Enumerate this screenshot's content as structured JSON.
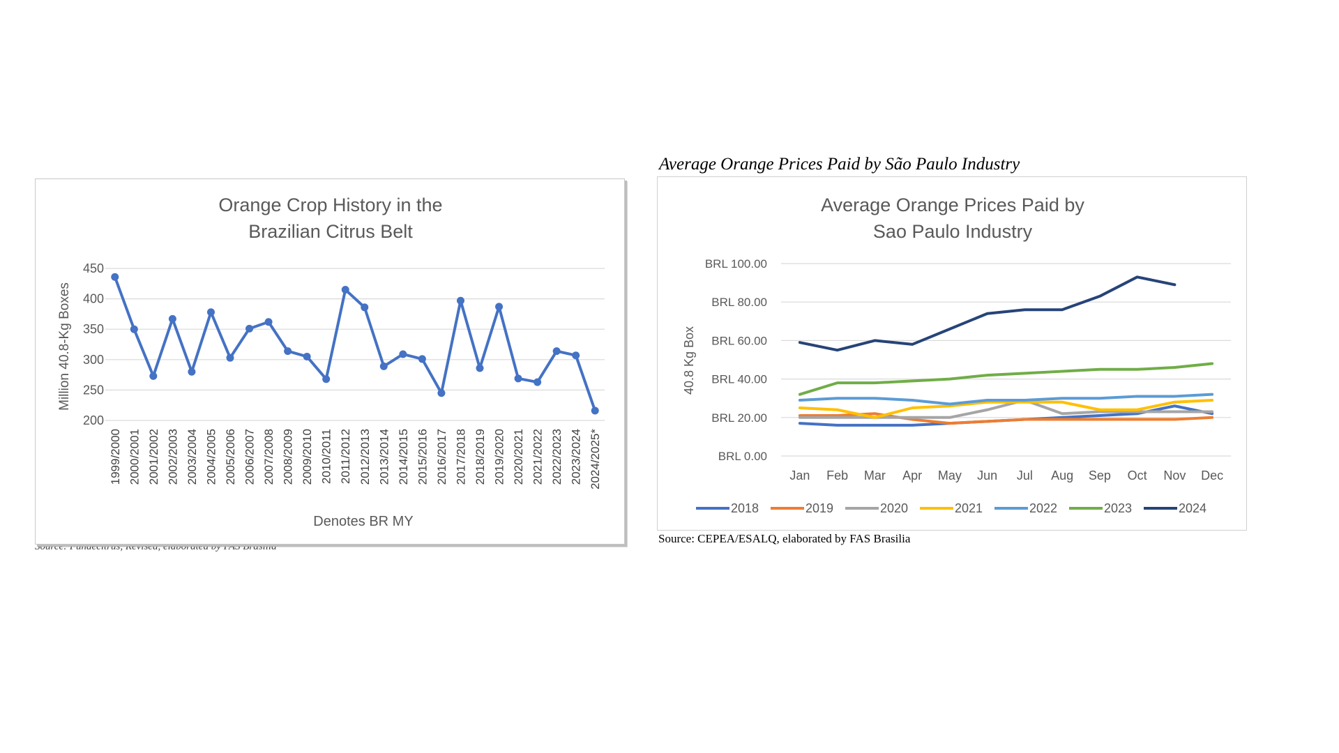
{
  "page": {
    "caption_title": "Average Orange Prices Paid by São Paulo Industry",
    "caption_source": "Source: CEPEA/ESALQ, elaborated by FAS Brasilia",
    "caption_cut_left": "Source: Fundecitrus, Revised, elaborated by FAS Brasilia"
  },
  "chart_data": [
    {
      "type": "line",
      "title": "Orange Crop History in the Brazilian Citrus Belt",
      "title_lines": [
        "Orange Crop History in the",
        "Brazilian Citrus Belt"
      ],
      "xlabel": "Denotes BR MY",
      "ylabel": "Million 40.8-Kg Boxes",
      "ylim": [
        200,
        450
      ],
      "yticks": [
        200,
        250,
        300,
        350,
        400,
        450
      ],
      "grid": true,
      "legend": "none",
      "categories": [
        "1999/2000",
        "2000/2001",
        "2001/2002",
        "2002/2003",
        "2003/2004",
        "2004/2005",
        "2005/2006",
        "2006/2007",
        "2007/2008",
        "2008/2009",
        "2009/2010",
        "2010/2011",
        "2011/2012",
        "2012/2013",
        "2013/2014",
        "2014/2015",
        "2015/2016",
        "2016/2017",
        "2017/2018",
        "2018/2019",
        "2019/2020",
        "2020/2021",
        "2021/2022",
        "2022/2023",
        "2023/2024",
        "2024/2025*"
      ],
      "values": [
        436,
        350,
        273,
        367,
        280,
        378,
        303,
        351,
        362,
        314,
        305,
        268,
        415,
        386,
        289,
        309,
        301,
        245,
        397,
        286,
        387,
        269,
        263,
        314,
        307,
        216
      ],
      "color": "#4472C4"
    },
    {
      "type": "line",
      "title": "Average Orange Prices Paid by Sao Paulo Industry",
      "title_lines": [
        "Average Orange Prices Paid by",
        "Sao Paulo Industry"
      ],
      "xlabel": "",
      "ylabel": "40.8 Kg Box",
      "ylim": [
        0,
        100
      ],
      "yticks": [
        0,
        20,
        40,
        60,
        80,
        100
      ],
      "ytick_labels": [
        "BRL 0.00",
        "BRL 20.00",
        "BRL 40.00",
        "BRL 60.00",
        "BRL 80.00",
        "BRL 100.00"
      ],
      "grid": true,
      "legend": "bottom",
      "categories": [
        "Jan",
        "Feb",
        "Mar",
        "Apr",
        "May",
        "Jun",
        "Jul",
        "Aug",
        "Sep",
        "Oct",
        "Nov",
        "Dec"
      ],
      "series": [
        {
          "name": "2018",
          "color": "#4472C4",
          "values": [
            17,
            16,
            16,
            16,
            17,
            18,
            19,
            20,
            21,
            22,
            26,
            22
          ]
        },
        {
          "name": "2019",
          "color": "#ED7D31",
          "values": [
            21,
            21,
            22,
            19,
            17,
            18,
            19,
            19,
            19,
            19,
            19,
            20
          ]
        },
        {
          "name": "2020",
          "color": "#A5A5A5",
          "values": [
            20,
            20,
            20,
            20,
            20,
            24,
            29,
            22,
            23,
            23,
            23,
            23
          ]
        },
        {
          "name": "2021",
          "color": "#FFC000",
          "values": [
            25,
            24,
            20,
            25,
            26,
            28,
            28,
            28,
            24,
            24,
            28,
            29
          ]
        },
        {
          "name": "2022",
          "color": "#5B9BD5",
          "values": [
            29,
            30,
            30,
            29,
            27,
            29,
            29,
            30,
            30,
            31,
            31,
            32
          ]
        },
        {
          "name": "2023",
          "color": "#70AD47",
          "values": [
            32,
            38,
            38,
            39,
            40,
            42,
            43,
            44,
            45,
            45,
            46,
            48
          ]
        },
        {
          "name": "2024",
          "color": "#264478",
          "values": [
            59,
            55,
            60,
            58,
            66,
            74,
            76,
            76,
            83,
            93,
            89,
            null
          ]
        }
      ]
    }
  ]
}
